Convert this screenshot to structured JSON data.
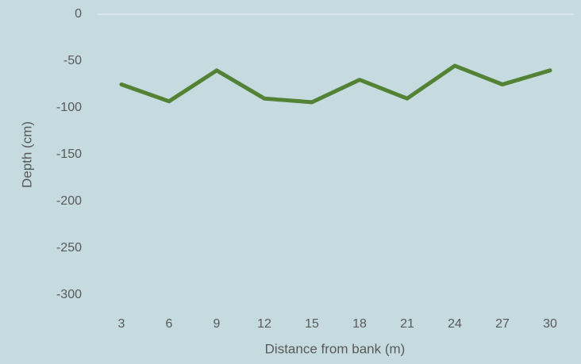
{
  "chart_data": {
    "type": "line",
    "x_label": "Distance from bank (m)",
    "y_label": "Depth (cm)",
    "categories": [
      3,
      6,
      9,
      12,
      15,
      18,
      21,
      24,
      27,
      30
    ],
    "series": [
      {
        "name": "Depth",
        "color": "#548235",
        "values": [
          -75,
          -93,
          -60,
          -90,
          -94,
          -70,
          -90,
          -55,
          -75,
          -60
        ]
      }
    ],
    "ylim": [
      -300,
      0
    ],
    "yticks": [
      0,
      -50,
      -100,
      -150,
      -200,
      -250,
      -300
    ],
    "grid": false,
    "legend": false
  }
}
